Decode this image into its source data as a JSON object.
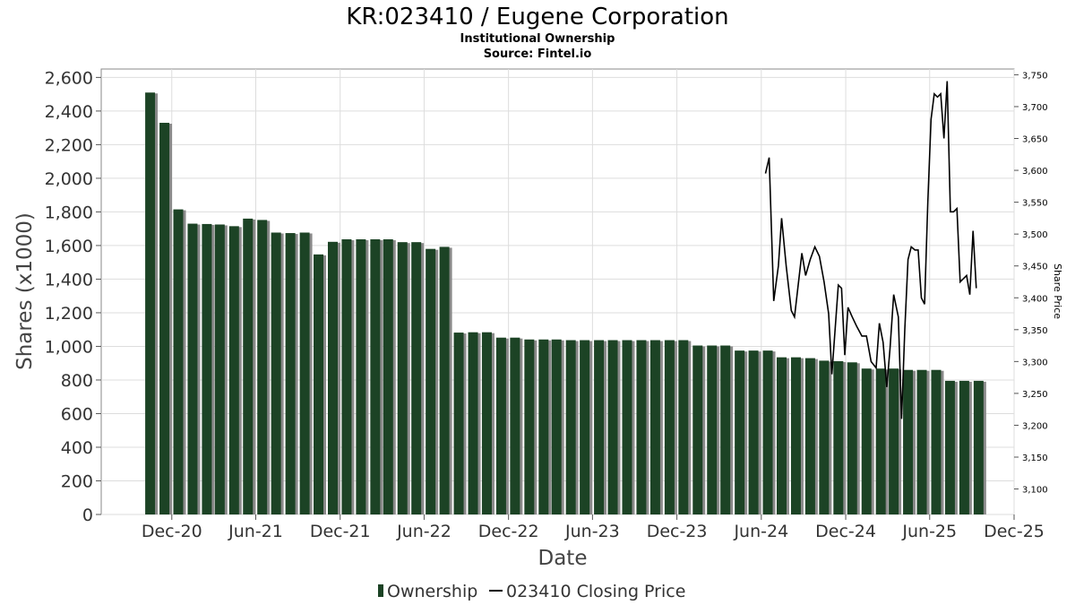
{
  "chart_data": {
    "type": "bar",
    "title": "KR:023410 / Eugene Corporation",
    "subtitle": "Institutional Ownership",
    "source": "Source: Fintel.io",
    "xlabel": "Date",
    "ylabel": "Shares (x1000)",
    "y2label": "Share Price",
    "ylim": [
      0,
      2650
    ],
    "y2lim": [
      3060,
      3759
    ],
    "yticks": [
      "0",
      "200",
      "400",
      "600",
      "800",
      "1,000",
      "1,200",
      "1,400",
      "1,600",
      "1,800",
      "2,000",
      "2,200",
      "2,400",
      "2,600"
    ],
    "y2ticks": [
      "3,100",
      "3,150",
      "3,200",
      "3,250",
      "3,300",
      "3,350",
      "3,400",
      "3,450",
      "3,500",
      "3,550",
      "3,600",
      "3,650",
      "3,700",
      "3,750"
    ],
    "xticks": [
      {
        "label": "Dec-20",
        "date": "2020-12-01"
      },
      {
        "label": "Jun-21",
        "date": "2021-06-01"
      },
      {
        "label": "Dec-21",
        "date": "2021-12-01"
      },
      {
        "label": "Jun-22",
        "date": "2022-06-01"
      },
      {
        "label": "Dec-22",
        "date": "2022-12-01"
      },
      {
        "label": "Jun-23",
        "date": "2023-06-01"
      },
      {
        "label": "Dec-23",
        "date": "2023-12-01"
      },
      {
        "label": "Jun-24",
        "date": "2024-06-01"
      },
      {
        "label": "Dec-24",
        "date": "2024-12-01"
      },
      {
        "label": "Jun-25",
        "date": "2025-06-01"
      },
      {
        "label": "Dec-25",
        "date": "2025-12-01"
      }
    ],
    "xlim": [
      "2020-07-01",
      "2025-12-01"
    ],
    "series": [
      {
        "name": "Ownership",
        "color": "#1c4325",
        "points": [
          {
            "date": "2020-10-15",
            "value": 2510
          },
          {
            "date": "2020-11-15",
            "value": 2330
          },
          {
            "date": "2020-12-15",
            "value": 1815
          },
          {
            "date": "2021-01-15",
            "value": 1730
          },
          {
            "date": "2021-02-15",
            "value": 1728
          },
          {
            "date": "2021-03-15",
            "value": 1725
          },
          {
            "date": "2021-04-15",
            "value": 1715
          },
          {
            "date": "2021-05-15",
            "value": 1760
          },
          {
            "date": "2021-06-15",
            "value": 1752
          },
          {
            "date": "2021-07-15",
            "value": 1677
          },
          {
            "date": "2021-08-15",
            "value": 1674
          },
          {
            "date": "2021-09-15",
            "value": 1677
          },
          {
            "date": "2021-10-15",
            "value": 1547
          },
          {
            "date": "2021-11-15",
            "value": 1622
          },
          {
            "date": "2021-12-15",
            "value": 1637
          },
          {
            "date": "2022-01-15",
            "value": 1637
          },
          {
            "date": "2022-02-15",
            "value": 1637
          },
          {
            "date": "2022-03-15",
            "value": 1637
          },
          {
            "date": "2022-04-15",
            "value": 1620
          },
          {
            "date": "2022-05-15",
            "value": 1620
          },
          {
            "date": "2022-06-15",
            "value": 1580
          },
          {
            "date": "2022-07-15",
            "value": 1592
          },
          {
            "date": "2022-08-15",
            "value": 1082
          },
          {
            "date": "2022-09-15",
            "value": 1084
          },
          {
            "date": "2022-10-15",
            "value": 1084
          },
          {
            "date": "2022-11-15",
            "value": 1052
          },
          {
            "date": "2022-12-15",
            "value": 1052
          },
          {
            "date": "2023-01-15",
            "value": 1041
          },
          {
            "date": "2023-02-15",
            "value": 1041
          },
          {
            "date": "2023-03-15",
            "value": 1041
          },
          {
            "date": "2023-04-15",
            "value": 1037
          },
          {
            "date": "2023-05-15",
            "value": 1037
          },
          {
            "date": "2023-06-15",
            "value": 1037
          },
          {
            "date": "2023-07-15",
            "value": 1037
          },
          {
            "date": "2023-08-15",
            "value": 1037
          },
          {
            "date": "2023-09-15",
            "value": 1037
          },
          {
            "date": "2023-10-15",
            "value": 1037
          },
          {
            "date": "2023-11-15",
            "value": 1037
          },
          {
            "date": "2023-12-15",
            "value": 1037
          },
          {
            "date": "2024-01-15",
            "value": 1005
          },
          {
            "date": "2024-02-15",
            "value": 1005
          },
          {
            "date": "2024-03-15",
            "value": 1005
          },
          {
            "date": "2024-04-15",
            "value": 975
          },
          {
            "date": "2024-05-15",
            "value": 975
          },
          {
            "date": "2024-06-15",
            "value": 975
          },
          {
            "date": "2024-07-15",
            "value": 935
          },
          {
            "date": "2024-08-15",
            "value": 935
          },
          {
            "date": "2024-09-15",
            "value": 930
          },
          {
            "date": "2024-10-15",
            "value": 915
          },
          {
            "date": "2024-11-15",
            "value": 912
          },
          {
            "date": "2024-12-15",
            "value": 905
          },
          {
            "date": "2025-01-15",
            "value": 868
          },
          {
            "date": "2025-02-15",
            "value": 868
          },
          {
            "date": "2025-03-15",
            "value": 868
          },
          {
            "date": "2025-04-15",
            "value": 860
          },
          {
            "date": "2025-05-15",
            "value": 860
          },
          {
            "date": "2025-06-15",
            "value": 860
          },
          {
            "date": "2025-07-15",
            "value": 795
          },
          {
            "date": "2025-08-15",
            "value": 795
          },
          {
            "date": "2025-09-15",
            "value": 795
          }
        ]
      },
      {
        "name": "023410 Closing Price",
        "color": "#000000",
        "axis": "right",
        "points": [
          {
            "date": "2024-06-10",
            "value": 3595
          },
          {
            "date": "2024-06-18",
            "value": 3620
          },
          {
            "date": "2024-06-28",
            "value": 3395
          },
          {
            "date": "2024-07-08",
            "value": 3450
          },
          {
            "date": "2024-07-15",
            "value": 3525
          },
          {
            "date": "2024-07-25",
            "value": 3450
          },
          {
            "date": "2024-08-05",
            "value": 3380
          },
          {
            "date": "2024-08-12",
            "value": 3370
          },
          {
            "date": "2024-08-20",
            "value": 3420
          },
          {
            "date": "2024-08-28",
            "value": 3470
          },
          {
            "date": "2024-09-05",
            "value": 3435
          },
          {
            "date": "2024-09-15",
            "value": 3460
          },
          {
            "date": "2024-09-25",
            "value": 3480
          },
          {
            "date": "2024-10-05",
            "value": 3465
          },
          {
            "date": "2024-10-15",
            "value": 3425
          },
          {
            "date": "2024-10-25",
            "value": 3375
          },
          {
            "date": "2024-11-01",
            "value": 3280
          },
          {
            "date": "2024-11-08",
            "value": 3350
          },
          {
            "date": "2024-11-15",
            "value": 3420
          },
          {
            "date": "2024-11-22",
            "value": 3415
          },
          {
            "date": "2024-11-29",
            "value": 3310
          },
          {
            "date": "2024-12-06",
            "value": 3385
          },
          {
            "date": "2024-12-15",
            "value": 3370
          },
          {
            "date": "2024-12-25",
            "value": 3355
          },
          {
            "date": "2025-01-05",
            "value": 3340
          },
          {
            "date": "2025-01-15",
            "value": 3340
          },
          {
            "date": "2025-01-25",
            "value": 3300
          },
          {
            "date": "2025-02-05",
            "value": 3290
          },
          {
            "date": "2025-02-12",
            "value": 3360
          },
          {
            "date": "2025-02-20",
            "value": 3330
          },
          {
            "date": "2025-02-28",
            "value": 3260
          },
          {
            "date": "2025-03-07",
            "value": 3320
          },
          {
            "date": "2025-03-15",
            "value": 3405
          },
          {
            "date": "2025-03-25",
            "value": 3370
          },
          {
            "date": "2025-04-01",
            "value": 3210
          },
          {
            "date": "2025-04-08",
            "value": 3350
          },
          {
            "date": "2025-04-15",
            "value": 3460
          },
          {
            "date": "2025-04-22",
            "value": 3480
          },
          {
            "date": "2025-04-30",
            "value": 3475
          },
          {
            "date": "2025-05-07",
            "value": 3475
          },
          {
            "date": "2025-05-14",
            "value": 3400
          },
          {
            "date": "2025-05-21",
            "value": 3390
          },
          {
            "date": "2025-05-28",
            "value": 3550
          },
          {
            "date": "2025-06-04",
            "value": 3680
          },
          {
            "date": "2025-06-11",
            "value": 3720
          },
          {
            "date": "2025-06-18",
            "value": 3715
          },
          {
            "date": "2025-06-25",
            "value": 3720
          },
          {
            "date": "2025-07-02",
            "value": 3650
          },
          {
            "date": "2025-07-09",
            "value": 3740
          },
          {
            "date": "2025-07-16",
            "value": 3535
          },
          {
            "date": "2025-07-23",
            "value": 3535
          },
          {
            "date": "2025-07-30",
            "value": 3540
          },
          {
            "date": "2025-08-06",
            "value": 3425
          },
          {
            "date": "2025-08-13",
            "value": 3430
          },
          {
            "date": "2025-08-20",
            "value": 3435
          },
          {
            "date": "2025-08-27",
            "value": 3405
          },
          {
            "date": "2025-09-03",
            "value": 3505
          },
          {
            "date": "2025-09-10",
            "value": 3415
          }
        ]
      }
    ],
    "grid": true,
    "legend": {
      "position": "bottom-center",
      "items": [
        "Ownership",
        "023410 Closing Price"
      ]
    }
  }
}
